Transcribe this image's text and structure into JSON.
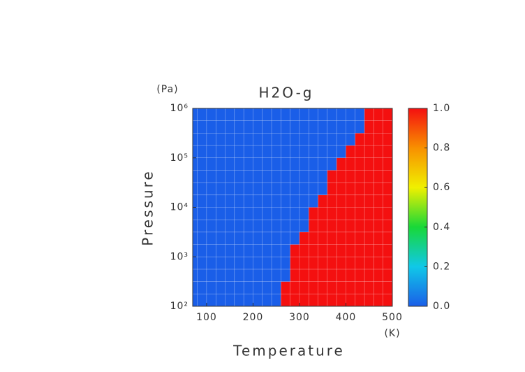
{
  "chart_data": {
    "type": "heatmap",
    "title": "H2O-g",
    "xlabel": "Temperature",
    "ylabel": "Pressure",
    "xunit": "(K)",
    "yunit": "(Pa)",
    "xlim": [
      70,
      500
    ],
    "xticks": [
      100,
      200,
      300,
      400,
      500
    ],
    "ylim": [
      100,
      1000000
    ],
    "yscale": "log",
    "yticks": [
      {
        "value": 100,
        "label": "10²"
      },
      {
        "value": 1000,
        "label": "10³"
      },
      {
        "value": 10000,
        "label": "10⁴"
      },
      {
        "value": 100000,
        "label": "10⁵"
      },
      {
        "value": 1000000,
        "label": "10⁶"
      }
    ],
    "xbins": [
      70,
      80,
      100,
      120,
      140,
      160,
      180,
      200,
      220,
      240,
      260,
      280,
      300,
      320,
      340,
      360,
      380,
      400,
      420,
      440,
      460,
      480,
      500
    ],
    "ybins": [
      100,
      178,
      316,
      562,
      1000,
      1778,
      3162,
      5623,
      10000,
      17783,
      31623,
      56234,
      100000,
      177828,
      316228,
      562341,
      1000000
    ],
    "z": [
      [
        0,
        0,
        0,
        0,
        0,
        0,
        0,
        0,
        0,
        0,
        1,
        1,
        1,
        1,
        1,
        1,
        1,
        1,
        1,
        1,
        1,
        1
      ],
      [
        0,
        0,
        0,
        0,
        0,
        0,
        0,
        0,
        0,
        0,
        1,
        1,
        1,
        1,
        1,
        1,
        1,
        1,
        1,
        1,
        1,
        1
      ],
      [
        0,
        0,
        0,
        0,
        0,
        0,
        0,
        0,
        0,
        0,
        0,
        1,
        1,
        1,
        1,
        1,
        1,
        1,
        1,
        1,
        1,
        1
      ],
      [
        0,
        0,
        0,
        0,
        0,
        0,
        0,
        0,
        0,
        0,
        0,
        1,
        1,
        1,
        1,
        1,
        1,
        1,
        1,
        1,
        1,
        1
      ],
      [
        0,
        0,
        0,
        0,
        0,
        0,
        0,
        0,
        0,
        0,
        0,
        1,
        1,
        1,
        1,
        1,
        1,
        1,
        1,
        1,
        1,
        1
      ],
      [
        0,
        0,
        0,
        0,
        0,
        0,
        0,
        0,
        0,
        0,
        0,
        0,
        1,
        1,
        1,
        1,
        1,
        1,
        1,
        1,
        1,
        1
      ],
      [
        0,
        0,
        0,
        0,
        0,
        0,
        0,
        0,
        0,
        0,
        0,
        0,
        0,
        1,
        1,
        1,
        1,
        1,
        1,
        1,
        1,
        1
      ],
      [
        0,
        0,
        0,
        0,
        0,
        0,
        0,
        0,
        0,
        0,
        0,
        0,
        0,
        1,
        1,
        1,
        1,
        1,
        1,
        1,
        1,
        1
      ],
      [
        0,
        0,
        0,
        0,
        0,
        0,
        0,
        0,
        0,
        0,
        0,
        0,
        0,
        0,
        1,
        1,
        1,
        1,
        1,
        1,
        1,
        1
      ],
      [
        0,
        0,
        0,
        0,
        0,
        0,
        0,
        0,
        0,
        0,
        0,
        0,
        0,
        0,
        0,
        1,
        1,
        1,
        1,
        1,
        1,
        1
      ],
      [
        0,
        0,
        0,
        0,
        0,
        0,
        0,
        0,
        0,
        0,
        0,
        0,
        0,
        0,
        0,
        1,
        1,
        1,
        1,
        1,
        1,
        1
      ],
      [
        0,
        0,
        0,
        0,
        0,
        0,
        0,
        0,
        0,
        0,
        0,
        0,
        0,
        0,
        0,
        0,
        1,
        1,
        1,
        1,
        1,
        1
      ],
      [
        0,
        0,
        0,
        0,
        0,
        0,
        0,
        0,
        0,
        0,
        0,
        0,
        0,
        0,
        0,
        0,
        0,
        1,
        1,
        1,
        1,
        1
      ],
      [
        0,
        0,
        0,
        0,
        0,
        0,
        0,
        0,
        0,
        0,
        0,
        0,
        0,
        0,
        0,
        0,
        0,
        0,
        1,
        1,
        1,
        1
      ],
      [
        0,
        0,
        0,
        0,
        0,
        0,
        0,
        0,
        0,
        0,
        0,
        0,
        0,
        0,
        0,
        0,
        0,
        0,
        0,
        1,
        1,
        1
      ],
      [
        0,
        0,
        0,
        0,
        0,
        0,
        0,
        0,
        0,
        0,
        0,
        0,
        0,
        0,
        0,
        0,
        0,
        0,
        0,
        1,
        1,
        1
      ]
    ],
    "clim": [
      0,
      1
    ],
    "cticks": [
      {
        "value": 0,
        "label": "0.0"
      },
      0.2,
      0.4,
      0.6,
      0.8,
      {
        "value": 1,
        "label": "1.0"
      }
    ],
    "colormap": [
      "#1a5ee8",
      "#10c8e8",
      "#18d838",
      "#f0f000",
      "#f89000",
      "#f41010"
    ]
  }
}
